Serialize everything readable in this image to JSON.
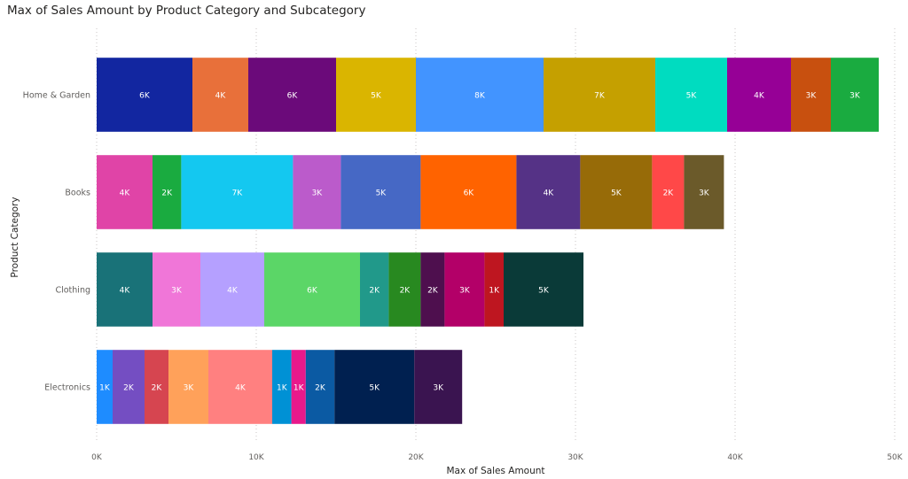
{
  "chart_data": {
    "type": "bar",
    "orientation": "horizontal",
    "stacked": true,
    "title": "Max of Sales Amount by Product Category and Subcategory",
    "xlabel": "Max of Sales Amount",
    "ylabel": "Product Category",
    "xlim": [
      0,
      50000
    ],
    "x_ticks": [
      {
        "value": 0,
        "label": "0K"
      },
      {
        "value": 10000,
        "label": "10K"
      },
      {
        "value": 20000,
        "label": "20K"
      },
      {
        "value": 30000,
        "label": "30K"
      },
      {
        "value": 40000,
        "label": "40K"
      },
      {
        "value": 50000,
        "label": "50K"
      }
    ],
    "grid": true,
    "categories": [
      {
        "name": "Home & Garden",
        "segments": [
          {
            "value": 6000,
            "label": "6K",
            "color": "#1226A0"
          },
          {
            "value": 3500,
            "label": "4K",
            "color": "#E8703A"
          },
          {
            "value": 5500,
            "label": "6K",
            "color": "#6B0A7A"
          },
          {
            "value": 5000,
            "label": "5K",
            "color": "#DAB500"
          },
          {
            "value": 8000,
            "label": "8K",
            "color": "#4294FF"
          },
          {
            "value": 7000,
            "label": "7K",
            "color": "#C5A000"
          },
          {
            "value": 4500,
            "label": "5K",
            "color": "#00DCC0"
          },
          {
            "value": 4000,
            "label": "4K",
            "color": "#960096"
          },
          {
            "value": 2500,
            "label": "3K",
            "color": "#C8500F"
          },
          {
            "value": 3000,
            "label": "3K",
            "color": "#1AAB40"
          }
        ]
      },
      {
        "name": "Books",
        "segments": [
          {
            "value": 3500,
            "label": "4K",
            "color": "#E044A7"
          },
          {
            "value": 1800,
            "label": "2K",
            "color": "#1AAB40"
          },
          {
            "value": 7000,
            "label": "7K",
            "color": "#14C8F0"
          },
          {
            "value": 3000,
            "label": "3K",
            "color": "#BB5BCB"
          },
          {
            "value": 5000,
            "label": "5K",
            "color": "#4668C5"
          },
          {
            "value": 6000,
            "label": "6K",
            "color": "#FF6300"
          },
          {
            "value": 4000,
            "label": "4K",
            "color": "#553286"
          },
          {
            "value": 4500,
            "label": "5K",
            "color": "#976B08"
          },
          {
            "value": 2000,
            "label": "2K",
            "color": "#FF4848"
          },
          {
            "value": 2500,
            "label": "3K",
            "color": "#6B5A2A"
          }
        ]
      },
      {
        "name": "Clothing",
        "segments": [
          {
            "value": 3500,
            "label": "4K",
            "color": "#197278"
          },
          {
            "value": 3000,
            "label": "3K",
            "color": "#F076D8"
          },
          {
            "value": 4000,
            "label": "4K",
            "color": "#B5A0FF"
          },
          {
            "value": 6000,
            "label": "6K",
            "color": "#5BD667"
          },
          {
            "value": 1800,
            "label": "2K",
            "color": "#21998A"
          },
          {
            "value": 2000,
            "label": "2K",
            "color": "#288920"
          },
          {
            "value": 1500,
            "label": "2K",
            "color": "#4E0F4E"
          },
          {
            "value": 2500,
            "label": "3K",
            "color": "#B30068"
          },
          {
            "value": 1200,
            "label": "1K",
            "color": "#BE1620"
          },
          {
            "value": 5000,
            "label": "5K",
            "color": "#0A3A38"
          }
        ]
      },
      {
        "name": "Electronics",
        "segments": [
          {
            "value": 1000,
            "label": "1K",
            "color": "#1E8CFF"
          },
          {
            "value": 2000,
            "label": "2K",
            "color": "#744EC2"
          },
          {
            "value": 1500,
            "label": "2K",
            "color": "#D64550"
          },
          {
            "value": 2500,
            "label": "3K",
            "color": "#FFA15A"
          },
          {
            "value": 4000,
            "label": "4K",
            "color": "#FF8080"
          },
          {
            "value": 1200,
            "label": "1K",
            "color": "#0091D5"
          },
          {
            "value": 900,
            "label": "1K",
            "color": "#E8198B"
          },
          {
            "value": 1800,
            "label": "2K",
            "color": "#0B5AA3"
          },
          {
            "value": 5000,
            "label": "5K",
            "color": "#002050"
          },
          {
            "value": 3000,
            "label": "3K",
            "color": "#3A1450"
          }
        ]
      }
    ]
  }
}
